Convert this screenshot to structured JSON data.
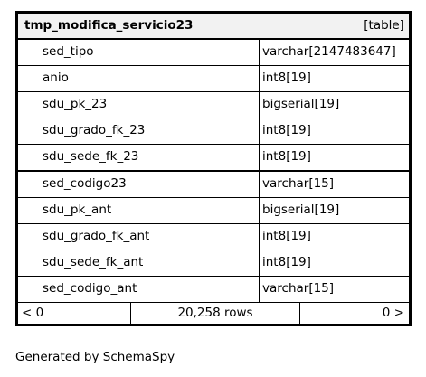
{
  "header": {
    "title": "tmp_modifica_servicio23",
    "kind": "[table]"
  },
  "columns": [
    [
      "sed_tipo",
      "varchar[2147483647]"
    ],
    [
      "anio",
      "int8[19]"
    ],
    [
      "sdu_pk_23",
      "bigserial[19]"
    ],
    [
      "sdu_grado_fk_23",
      "int8[19]"
    ],
    [
      "sdu_sede_fk_23",
      "int8[19]"
    ],
    [
      "sed_codigo23",
      "varchar[15]"
    ],
    [
      "sdu_pk_ant",
      "bigserial[19]"
    ],
    [
      "sdu_grado_fk_ant",
      "int8[19]"
    ],
    [
      "sdu_sede_fk_ant",
      "int8[19]"
    ],
    [
      "sed_codigo_ant",
      "varchar[15]"
    ]
  ],
  "footer": {
    "left": "< 0",
    "rows": "20,258 rows",
    "right": "0 >"
  },
  "note": "Generated by SchemaSpy"
}
